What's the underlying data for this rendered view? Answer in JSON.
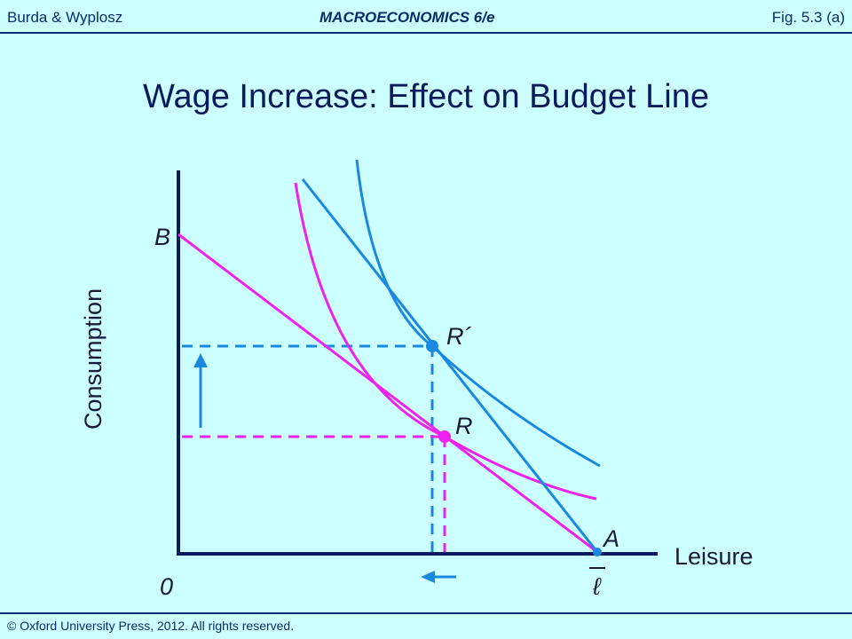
{
  "header": {
    "left": "Burda & Wyplosz",
    "center": "MACROECONOMICS   6/e",
    "right": "Fig. 5.3 (a)"
  },
  "title": "Wage Increase: Effect on Budget Line",
  "footer": "© Oxford University Press, 2012. All rights reserved.",
  "diagram": {
    "y_axis_label": "Consumption",
    "x_axis_label": "Leisure",
    "origin_label": "0",
    "max_leisure_label": "ℓ",
    "point_labels": {
      "B": "B",
      "A": "A",
      "R": "R",
      "R_prime": "R´"
    }
  },
  "colors": {
    "axis": "#0a1a5e",
    "new_budget": "#1a88e0",
    "old_budget": "#ee22ee",
    "background": "#ccffff",
    "text": "#0a2a6e"
  }
}
